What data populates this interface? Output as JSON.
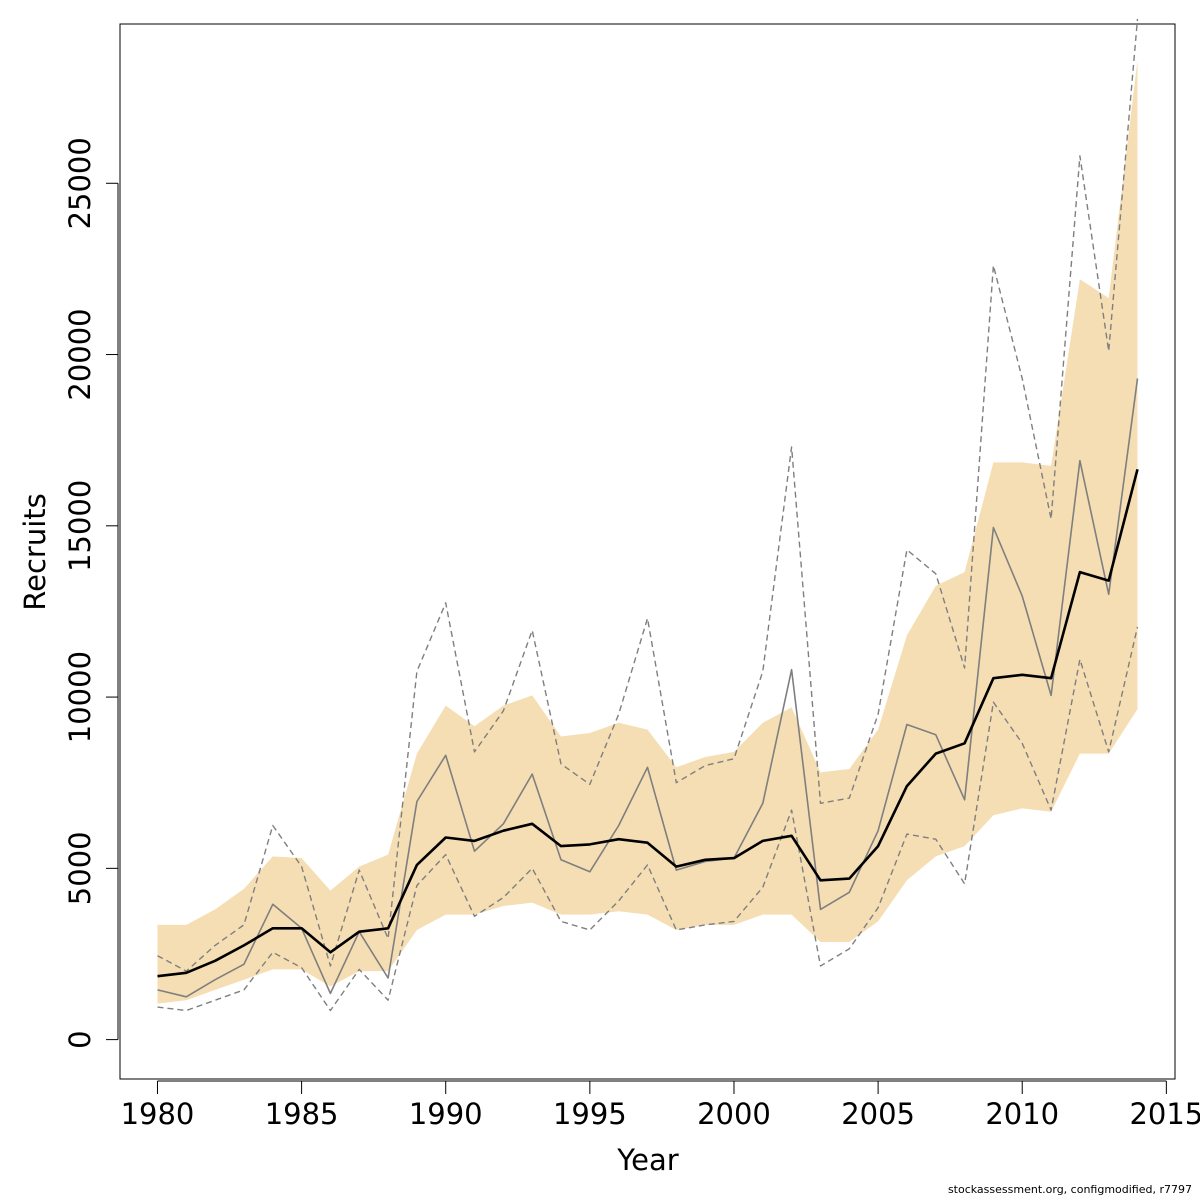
{
  "chart_data": {
    "type": "line",
    "title": "",
    "xlabel": "Year",
    "ylabel": "Recruits",
    "xlim": [
      1978.7,
      2015.3
    ],
    "ylim": [
      -1150,
      29650
    ],
    "x_ticks": [
      1980,
      1985,
      1990,
      1995,
      2000,
      2005,
      2010,
      2015
    ],
    "y_ticks": [
      0,
      5000,
      10000,
      15000,
      20000,
      25000
    ],
    "grid": false,
    "legend": "none",
    "x": [
      1980,
      1981,
      1982,
      1983,
      1984,
      1985,
      1986,
      1987,
      1988,
      1989,
      1990,
      1991,
      1992,
      1993,
      1994,
      1995,
      1996,
      1997,
      1998,
      1999,
      2000,
      2001,
      2002,
      2003,
      2004,
      2005,
      2006,
      2007,
      2008,
      2009,
      2010,
      2011,
      2012,
      2013,
      2014
    ],
    "band": {
      "color": "#F5DEB3",
      "lower": [
        1050,
        1150,
        1450,
        1750,
        2050,
        2050,
        1550,
        2000,
        2000,
        3200,
        3650,
        3650,
        3900,
        4000,
        3650,
        3650,
        3750,
        3650,
        3200,
        3350,
        3350,
        3650,
        3650,
        2850,
        2850,
        3450,
        4650,
        5350,
        5650,
        6550,
        6750,
        6650,
        8350,
        8350,
        9650
      ],
      "upper": [
        3350,
        3350,
        3800,
        4400,
        5350,
        5300,
        4350,
        5050,
        5400,
        8350,
        9750,
        9150,
        9750,
        10050,
        8850,
        8950,
        9250,
        9050,
        7950,
        8250,
        8400,
        9250,
        9700,
        7800,
        7900,
        9050,
        11800,
        13250,
        13650,
        16850,
        16850,
        16750,
        22200,
        21650,
        28600
      ]
    },
    "series": [
      {
        "color": "#000000",
        "style": "solid-bold",
        "values": [
          1850,
          1950,
          2300,
          2750,
          3250,
          3250,
          2550,
          3150,
          3250,
          5100,
          5900,
          5800,
          6100,
          6300,
          5650,
          5700,
          5850,
          5750,
          5050,
          5250,
          5300,
          5800,
          5950,
          4650,
          4700,
          5650,
          7400,
          8350,
          8650,
          10550,
          10650,
          10550,
          13650,
          13400,
          16650
        ]
      },
      {
        "color": "#7f7f7f",
        "style": "solid",
        "values": [
          1450,
          1250,
          1750,
          2200,
          3950,
          3250,
          1350,
          3150,
          1800,
          6950,
          8300,
          5500,
          6300,
          7750,
          5250,
          4900,
          6250,
          7950,
          4950,
          5200,
          5300,
          6900,
          10800,
          3800,
          4300,
          6100,
          9200,
          8900,
          7000,
          14950,
          12950,
          10050,
          16900,
          13000,
          19300
        ]
      },
      {
        "color": "#7f7f7f",
        "style": "dashed",
        "values": [
          2450,
          2000,
          2750,
          3350,
          6250,
          5050,
          2150,
          4950,
          2950,
          10750,
          12750,
          8400,
          9600,
          11950,
          8050,
          7450,
          9500,
          12300,
          7500,
          8000,
          8200,
          10750,
          17300,
          6900,
          7050,
          9500,
          14300,
          13600,
          10850,
          22600,
          19300,
          15200,
          25800,
          20100,
          29800
        ]
      },
      {
        "color": "#7f7f7f",
        "style": "dashed",
        "values": [
          950,
          850,
          1150,
          1450,
          2550,
          2100,
          850,
          2050,
          1150,
          4500,
          5400,
          3600,
          4150,
          5000,
          3450,
          3200,
          4050,
          5100,
          3200,
          3350,
          3450,
          4450,
          6700,
          2150,
          2650,
          3850,
          6000,
          5850,
          4550,
          9850,
          8650,
          6700,
          11100,
          8400,
          12050
        ]
      }
    ]
  },
  "footnote": "stockassessment.org, configmodified, r7797"
}
